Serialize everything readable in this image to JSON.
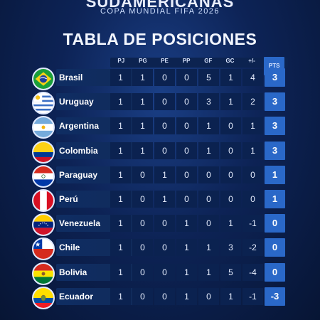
{
  "header": {
    "top": "SUDAMERICANAS",
    "subtitle": "COPA MUNDIAL FIFA 2026"
  },
  "title": "TABLA DE POSICIONES",
  "columns": [
    "PJ",
    "PG",
    "PE",
    "PP",
    "GF",
    "GC",
    "+/-",
    "PTS"
  ],
  "rows": [
    {
      "team": "Brasil",
      "flag": "brazil-flag-icon",
      "pj": "1",
      "pg": "1",
      "pe": "0",
      "pp": "0",
      "gf": "5",
      "gc": "1",
      "dif": "4",
      "pts": "3"
    },
    {
      "team": "Uruguay",
      "flag": "uruguay-flag-icon",
      "pj": "1",
      "pg": "1",
      "pe": "0",
      "pp": "0",
      "gf": "3",
      "gc": "1",
      "dif": "2",
      "pts": "3"
    },
    {
      "team": "Argentina",
      "flag": "argentina-flag-icon",
      "pj": "1",
      "pg": "1",
      "pe": "0",
      "pp": "0",
      "gf": "1",
      "gc": "0",
      "dif": "1",
      "pts": "3"
    },
    {
      "team": "Colombia",
      "flag": "colombia-flag-icon",
      "pj": "1",
      "pg": "1",
      "pe": "0",
      "pp": "0",
      "gf": "1",
      "gc": "0",
      "dif": "1",
      "pts": "3"
    },
    {
      "team": "Paraguay",
      "flag": "paraguay-flag-icon",
      "pj": "1",
      "pg": "0",
      "pe": "1",
      "pp": "0",
      "gf": "0",
      "gc": "0",
      "dif": "0",
      "pts": "1"
    },
    {
      "team": "Perú",
      "flag": "peru-flag-icon",
      "pj": "1",
      "pg": "0",
      "pe": "1",
      "pp": "0",
      "gf": "0",
      "gc": "0",
      "dif": "0",
      "pts": "1"
    },
    {
      "team": "Venezuela",
      "flag": "venezuela-flag-icon",
      "pj": "1",
      "pg": "0",
      "pe": "0",
      "pp": "1",
      "gf": "0",
      "gc": "1",
      "dif": "-1",
      "pts": "0"
    },
    {
      "team": "Chile",
      "flag": "chile-flag-icon",
      "pj": "1",
      "pg": "0",
      "pe": "0",
      "pp": "1",
      "gf": "1",
      "gc": "3",
      "dif": "-2",
      "pts": "0"
    },
    {
      "team": "Bolivia",
      "flag": "bolivia-flag-icon",
      "pj": "1",
      "pg": "0",
      "pe": "0",
      "pp": "1",
      "gf": "1",
      "gc": "5",
      "dif": "-4",
      "pts": "0"
    },
    {
      "team": "Ecuador",
      "flag": "ecuador-flag-icon",
      "pj": "1",
      "pg": "0",
      "pe": "0",
      "pp": "1",
      "gf": "0",
      "gc": "1",
      "dif": "-1",
      "pts": "-3"
    }
  ],
  "colors": {
    "background": "#0d2356",
    "pts_cell": "#2a68c8",
    "cell": "#0b2250"
  }
}
